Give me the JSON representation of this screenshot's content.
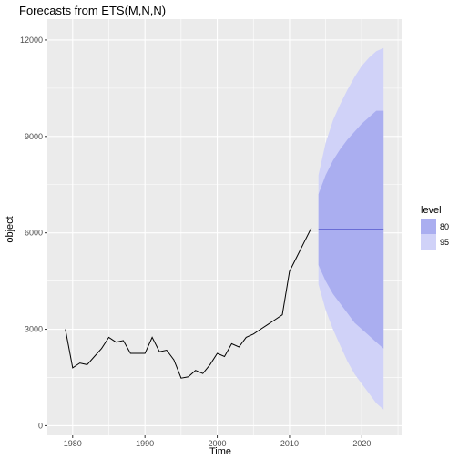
{
  "chart_data": {
    "type": "line",
    "title": "Forecasts from ETS(M,N,N)",
    "xlabel": "Time",
    "ylabel": "object",
    "xlim": [
      1976.5,
      2025.5
    ],
    "ylim": [
      -300,
      12650
    ],
    "x_ticks": [
      1980,
      1990,
      2000,
      2010,
      2020
    ],
    "y_ticks": [
      0,
      3000,
      6000,
      9000,
      12000
    ],
    "x_tick_labels": [
      "1980",
      "1990",
      "2000",
      "2010",
      "2020"
    ],
    "y_tick_labels": [
      "0",
      "3000",
      "6000",
      "9000",
      "12000"
    ],
    "grid": true,
    "legend_position": "right",
    "legend_title": "level",
    "legend_entries": [
      {
        "label": "80",
        "color": "#aaaef0"
      },
      {
        "label": "95",
        "color": "#d0d2f8"
      }
    ],
    "colors": {
      "panel_background": "#ebebeb",
      "grid_major": "#ffffff",
      "series_line": "#000000",
      "forecast_line": "#0000aa",
      "band_80": "#aaaef0",
      "band_95": "#d0d2f8"
    },
    "series": [
      {
        "x": [
          1979,
          1980,
          1981,
          1982,
          1983,
          1984,
          1985,
          1986,
          1987,
          1988,
          1989,
          1990,
          1991,
          1992,
          1993,
          1994,
          1995,
          1996,
          1997,
          1998,
          1999,
          2000,
          2001,
          2002,
          2003,
          2004,
          2005,
          2006,
          2007,
          2008,
          2009,
          2010,
          2011,
          2012,
          2013
        ],
        "values": [
          3000,
          1800,
          1950,
          1900,
          2150,
          2400,
          2750,
          2600,
          2650,
          2250,
          2250,
          2250,
          2750,
          2300,
          2350,
          2050,
          1480,
          1520,
          1720,
          1620,
          1900,
          2250,
          2150,
          2550,
          2450,
          2750,
          2850,
          3000,
          3150,
          3300,
          3450,
          4800,
          5250,
          5700,
          6150
        ]
      }
    ],
    "forecast": {
      "x": [
        2014,
        2015,
        2016,
        2017,
        2018,
        2019,
        2020,
        2021,
        2022,
        2023
      ],
      "mean": [
        6100,
        6100,
        6100,
        6100,
        6100,
        6100,
        6100,
        6100,
        6100,
        6100
      ],
      "lo80": [
        5000,
        4500,
        4100,
        3800,
        3500,
        3200,
        3000,
        2800,
        2600,
        2400
      ],
      "hi80": [
        7200,
        7800,
        8250,
        8600,
        8900,
        9150,
        9400,
        9600,
        9800,
        9800
      ],
      "lo95": [
        4400,
        3600,
        3000,
        2500,
        2000,
        1600,
        1300,
        1000,
        700,
        500
      ],
      "hi95": [
        7800,
        8800,
        9500,
        10000,
        10450,
        10850,
        11200,
        11450,
        11650,
        11750
      ]
    }
  }
}
